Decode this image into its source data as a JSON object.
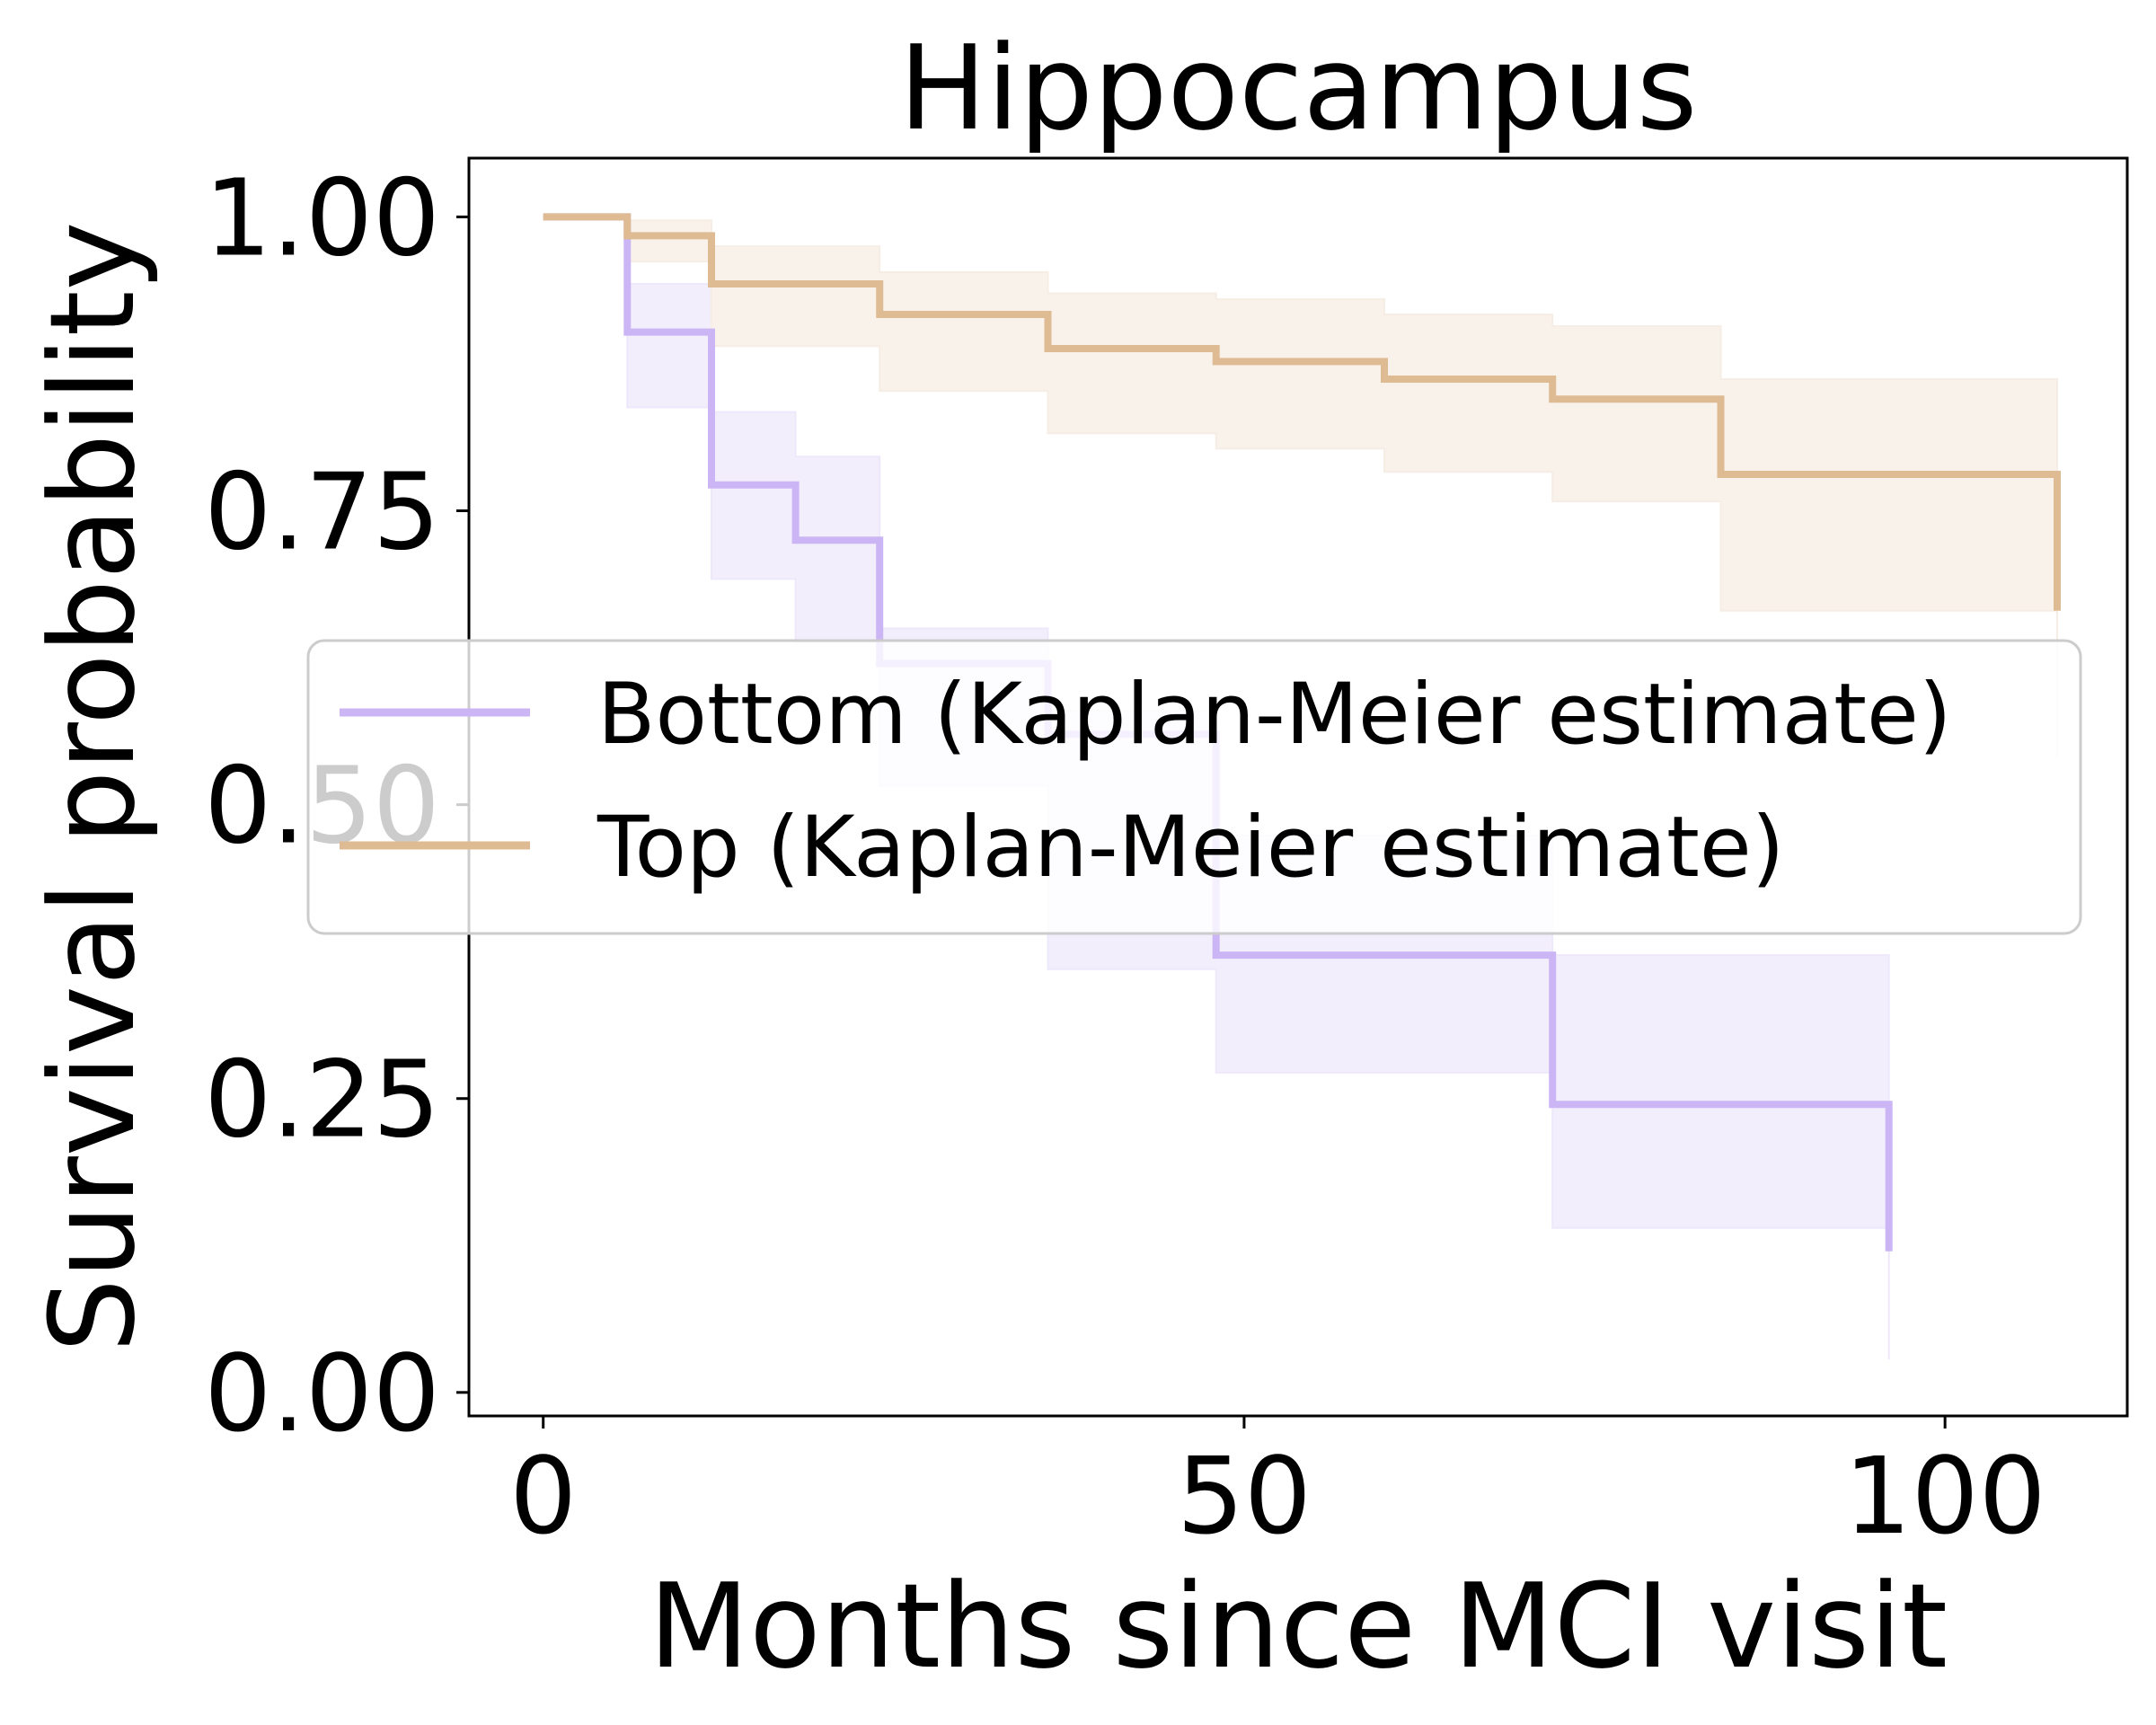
{
  "chart_data": {
    "type": "line",
    "title": "Hippocampus",
    "xlabel": "Months since MCI visit",
    "ylabel": "Survival probability",
    "xlim": [
      -5.3,
      113
    ],
    "ylim": [
      -0.02,
      1.05
    ],
    "xticks": [
      0,
      50,
      100
    ],
    "xtick_labels": [
      "0",
      "50",
      "100"
    ],
    "yticks": [
      0.0,
      0.25,
      0.5,
      0.75,
      1.0
    ],
    "ytick_labels": [
      "0.00",
      "0.25",
      "0.50",
      "0.75",
      "1.00"
    ],
    "grid": false,
    "legend_position": "center-right",
    "series": [
      {
        "name": "Bottom (Kaplan-Meier estimate)",
        "color": "#cbb5f5",
        "band_color": "#eee8fb",
        "steps": [
          {
            "x0": 0,
            "x1": 6,
            "y": 1.0,
            "lo": 1.0,
            "hi": 1.0
          },
          {
            "x0": 6,
            "x1": 12,
            "y": 0.902,
            "lo": 0.838,
            "hi": 0.943
          },
          {
            "x0": 12,
            "x1": 18,
            "y": 0.772,
            "lo": 0.692,
            "hi": 0.834
          },
          {
            "x0": 18,
            "x1": 24,
            "y": 0.725,
            "lo": 0.638,
            "hi": 0.796
          },
          {
            "x0": 24,
            "x1": 36,
            "y": 0.62,
            "lo": 0.516,
            "hi": 0.65
          },
          {
            "x0": 36,
            "x1": 48,
            "y": 0.56,
            "lo": 0.36,
            "hi": 0.58
          },
          {
            "x0": 48,
            "x1": 72,
            "y": 0.372,
            "lo": 0.272,
            "hi": 0.474
          },
          {
            "x0": 72,
            "x1": 96,
            "y": 0.245,
            "lo": 0.14,
            "hi": 0.372
          },
          {
            "x0": 96,
            "x1": 96,
            "y": 0.12,
            "lo": 0.028,
            "hi": 0.372
          }
        ]
      },
      {
        "name": "Top (Kaplan-Meier estimate)",
        "color": "#dfbb94",
        "band_color": "#f6ede4",
        "steps": [
          {
            "x0": 0,
            "x1": 6,
            "y": 1.0,
            "lo": 1.0,
            "hi": 1.0
          },
          {
            "x0": 6,
            "x1": 12,
            "y": 0.984,
            "lo": 0.962,
            "hi": 0.997
          },
          {
            "x0": 12,
            "x1": 24,
            "y": 0.943,
            "lo": 0.89,
            "hi": 0.975
          },
          {
            "x0": 24,
            "x1": 36,
            "y": 0.917,
            "lo": 0.852,
            "hi": 0.953
          },
          {
            "x0": 36,
            "x1": 48,
            "y": 0.888,
            "lo": 0.816,
            "hi": 0.935
          },
          {
            "x0": 48,
            "x1": 60,
            "y": 0.877,
            "lo": 0.803,
            "hi": 0.93
          },
          {
            "x0": 60,
            "x1": 72,
            "y": 0.862,
            "lo": 0.783,
            "hi": 0.917
          },
          {
            "x0": 72,
            "x1": 84,
            "y": 0.845,
            "lo": 0.758,
            "hi": 0.907
          },
          {
            "x0": 84,
            "x1": 108,
            "y": 0.781,
            "lo": 0.665,
            "hi": 0.862
          },
          {
            "x0": 108,
            "x1": 108,
            "y": 0.665,
            "lo": 0.54,
            "hi": 0.862
          }
        ]
      }
    ]
  }
}
